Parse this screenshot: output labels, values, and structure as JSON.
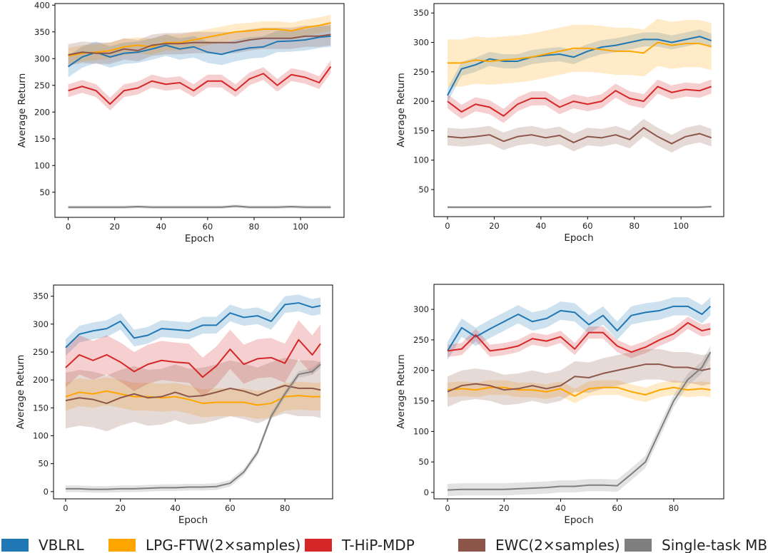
{
  "legend": [
    {
      "name": "VBLRL",
      "color": "#1f77b4"
    },
    {
      "name": "LPG-FTW(2×samples)",
      "color": "#ffa500"
    },
    {
      "name": "T-HiP-MDP",
      "color": "#d62728"
    },
    {
      "name": "EWC(2×samples)",
      "color": "#8c564b"
    },
    {
      "name": "Single-task MBRL",
      "color": "#7f7f7f"
    }
  ],
  "chart_data": [
    {
      "type": "line",
      "xlabel": "Epoch",
      "ylabel": "Average Return",
      "xlim": [
        -5.7,
        118.7
      ],
      "ylim": [
        3,
        403
      ],
      "xticks": [
        0,
        20,
        40,
        60,
        80,
        100
      ],
      "yticks": [
        50,
        100,
        150,
        200,
        250,
        300,
        350,
        400
      ],
      "x": [
        0,
        6,
        12,
        18,
        24,
        30,
        36,
        42,
        48,
        54,
        60,
        66,
        72,
        78,
        84,
        90,
        96,
        102,
        108,
        113
      ],
      "series": [
        {
          "name": "VBLRL",
          "band": 20,
          "values": [
            285,
            303,
            312,
            303,
            310,
            312,
            318,
            325,
            318,
            322,
            312,
            308,
            315,
            320,
            322,
            332,
            333,
            335,
            340,
            342
          ]
        },
        {
          "name": "LPG-FTW(2×samples)",
          "band": 15,
          "values": [
            305,
            310,
            312,
            315,
            322,
            325,
            322,
            330,
            330,
            335,
            340,
            345,
            350,
            352,
            355,
            355,
            352,
            358,
            362,
            367
          ]
        },
        {
          "name": "T-HiP-MDP",
          "band": 12,
          "values": [
            240,
            248,
            240,
            215,
            240,
            245,
            258,
            252,
            255,
            240,
            258,
            258,
            240,
            262,
            272,
            250,
            270,
            265,
            255,
            285
          ]
        },
        {
          "name": "EWC(2×samples)",
          "band": 20,
          "values": [
            307,
            312,
            310,
            310,
            318,
            315,
            325,
            328,
            328,
            330,
            330,
            330,
            330,
            335,
            338,
            338,
            338,
            342,
            342,
            345
          ]
        },
        {
          "name": "Single-task MBRL",
          "band": 3,
          "values": [
            22,
            22,
            22,
            22,
            22,
            23,
            22,
            22,
            22,
            22,
            22,
            22,
            24,
            22,
            22,
            22,
            23,
            22,
            22,
            22
          ]
        }
      ]
    },
    {
      "type": "line",
      "xlabel": "Epoch",
      "ylabel": "Average Return",
      "xlim": [
        -5.8,
        118.3
      ],
      "ylim": [
        4,
        366
      ],
      "xticks": [
        0,
        20,
        40,
        60,
        80,
        100
      ],
      "yticks": [
        50,
        100,
        150,
        200,
        250,
        300,
        350
      ],
      "x": [
        0,
        6,
        12,
        18,
        24,
        30,
        36,
        42,
        48,
        54,
        60,
        66,
        72,
        78,
        84,
        90,
        96,
        102,
        108,
        113
      ],
      "series": [
        {
          "name": "VBLRL",
          "band": 12,
          "values": [
            210,
            255,
            262,
            272,
            268,
            268,
            275,
            278,
            280,
            275,
            285,
            292,
            295,
            300,
            305,
            305,
            300,
            305,
            310,
            303
          ]
        },
        {
          "name": "LPG-FTW(2×samples)",
          "band": 40,
          "values": [
            265,
            265,
            270,
            268,
            270,
            272,
            275,
            280,
            285,
            290,
            290,
            288,
            285,
            285,
            282,
            300,
            295,
            298,
            298,
            293
          ]
        },
        {
          "name": "T-HiP-MDP",
          "band": 12,
          "values": [
            200,
            182,
            195,
            190,
            175,
            195,
            205,
            205,
            190,
            200,
            195,
            200,
            218,
            205,
            200,
            225,
            215,
            220,
            218,
            225
          ]
        },
        {
          "name": "EWC(2×samples)",
          "band": 15,
          "values": [
            140,
            138,
            140,
            143,
            132,
            140,
            143,
            138,
            142,
            130,
            140,
            138,
            143,
            135,
            155,
            140,
            128,
            140,
            145,
            138
          ]
        },
        {
          "name": "Single-task MBRL",
          "band": 2,
          "values": [
            20,
            20,
            20,
            20,
            20,
            20,
            20,
            20,
            20,
            20,
            20,
            20,
            20,
            20,
            20,
            20,
            20,
            20,
            20,
            21
          ]
        }
      ]
    },
    {
      "type": "line",
      "xlabel": "Epoch",
      "ylabel": "Average Return",
      "xlim": [
        -4.4,
        97.4
      ],
      "ylim": [
        -13,
        370
      ],
      "xticks": [
        0,
        20,
        40,
        60,
        80
      ],
      "yticks": [
        0,
        50,
        100,
        150,
        200,
        250,
        300,
        350
      ],
      "x": [
        0,
        5,
        10,
        15,
        20,
        25,
        30,
        35,
        40,
        45,
        50,
        55,
        60,
        65,
        70,
        75,
        80,
        85,
        90,
        93
      ],
      "series": [
        {
          "name": "VBLRL",
          "band": 15,
          "values": [
            258,
            282,
            288,
            292,
            305,
            275,
            280,
            292,
            290,
            288,
            298,
            298,
            320,
            312,
            315,
            305,
            335,
            338,
            330,
            333
          ]
        },
        {
          "name": "LPG-FTW(2×samples)",
          "band": 25,
          "values": [
            170,
            178,
            175,
            180,
            175,
            170,
            170,
            168,
            170,
            165,
            158,
            160,
            160,
            160,
            155,
            158,
            170,
            172,
            170,
            170
          ]
        },
        {
          "name": "T-HiP-MDP",
          "band": 35,
          "values": [
            222,
            245,
            235,
            245,
            232,
            215,
            228,
            235,
            232,
            230,
            205,
            225,
            255,
            228,
            238,
            240,
            230,
            272,
            245,
            265
          ]
        },
        {
          "name": "EWC(2×samples)",
          "band": 50,
          "values": [
            163,
            168,
            165,
            158,
            168,
            175,
            168,
            170,
            178,
            170,
            172,
            178,
            185,
            180,
            172,
            182,
            190,
            185,
            185,
            182
          ]
        },
        {
          "name": "Single-task MBRL",
          "band": 6,
          "values": [
            5,
            5,
            4,
            4,
            5,
            5,
            6,
            7,
            7,
            8,
            8,
            9,
            15,
            35,
            70,
            135,
            175,
            210,
            215,
            228
          ]
        }
      ]
    },
    {
      "type": "line",
      "xlabel": "Epoch",
      "ylabel": "Average Return",
      "xlim": [
        -4.8,
        97.7
      ],
      "ylim": [
        -10.5,
        341
      ],
      "xticks": [
        0,
        20,
        40,
        60,
        80
      ],
      "yticks": [
        0,
        50,
        100,
        150,
        200,
        250,
        300
      ],
      "x": [
        0,
        5,
        10,
        15,
        20,
        25,
        30,
        35,
        40,
        45,
        50,
        55,
        60,
        65,
        70,
        75,
        80,
        85,
        90,
        93
      ],
      "series": [
        {
          "name": "VBLRL",
          "band": 15,
          "values": [
            232,
            270,
            255,
            268,
            280,
            292,
            280,
            285,
            298,
            295,
            275,
            290,
            265,
            290,
            295,
            298,
            305,
            305,
            292,
            305
          ]
        },
        {
          "name": "LPG-FTW(2×samples)",
          "band": 12,
          "values": [
            168,
            170,
            168,
            172,
            172,
            168,
            168,
            165,
            170,
            158,
            170,
            172,
            172,
            165,
            160,
            168,
            172,
            168,
            170,
            168
          ]
        },
        {
          "name": "T-HiP-MDP",
          "band": 10,
          "values": [
            232,
            235,
            258,
            232,
            235,
            240,
            252,
            248,
            255,
            235,
            262,
            262,
            240,
            230,
            238,
            250,
            260,
            278,
            265,
            268
          ]
        },
        {
          "name": "EWC(2×samples)",
          "band": 25,
          "values": [
            165,
            175,
            178,
            175,
            168,
            170,
            175,
            170,
            175,
            190,
            188,
            195,
            200,
            205,
            210,
            210,
            205,
            205,
            200,
            203
          ]
        },
        {
          "name": "Single-task MBRL",
          "band": 10,
          "values": [
            4,
            5,
            5,
            5,
            5,
            6,
            7,
            8,
            10,
            10,
            12,
            12,
            11,
            30,
            50,
            100,
            150,
            185,
            205,
            230
          ]
        }
      ]
    }
  ]
}
